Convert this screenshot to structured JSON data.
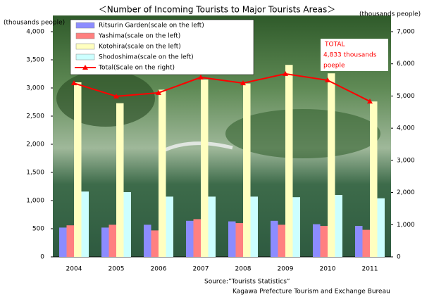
{
  "chart_data": {
    "type": "bar-line",
    "title": "＜Number of Incoming Tourists to Major Tourists Areas＞",
    "y_label": "(thousands people)",
    "y2_label": "(thousands people)",
    "categories": [
      "2004",
      "2005",
      "2006",
      "2007",
      "2008",
      "2009",
      "2010",
      "2011"
    ],
    "series": [
      {
        "name": "Ritsurin Garden(scale on the left)",
        "type": "bar",
        "color": "#8c8cff",
        "values": [
          520,
          520,
          570,
          640,
          630,
          640,
          580,
          550
        ]
      },
      {
        "name": "Yashima(scale on the left)",
        "type": "bar",
        "color": "#ff8080",
        "values": [
          560,
          570,
          470,
          670,
          600,
          570,
          550,
          480
        ]
      },
      {
        "name": "Kotohira(scale on the left)",
        "type": "bar",
        "color": "#ffffc0",
        "values": [
          3100,
          2730,
          2970,
          3150,
          3080,
          3410,
          3260,
          2760
        ]
      },
      {
        "name": "Shodoshima(scale on the left)",
        "type": "bar",
        "color": "#ccffff",
        "values": [
          1160,
          1150,
          1070,
          1070,
          1070,
          1060,
          1100,
          1040
        ]
      },
      {
        "name": "Total(Scale on the right)",
        "type": "line",
        "axis": "y2",
        "color": "#ff0000",
        "values": [
          5400,
          4990,
          5100,
          5580,
          5400,
          5690,
          5490,
          4833
        ]
      }
    ],
    "ylim": [
      0,
      4000
    ],
    "yticks": [
      0,
      500,
      {
        "value": 1000,
        "label": "1,000"
      },
      {
        "value": 1500,
        "label": "1,500"
      },
      {
        "value": 2000,
        "label": "2,000"
      },
      {
        "value": 2500,
        "label": "2,500"
      },
      {
        "value": 3000,
        "label": "3,000"
      },
      {
        "value": 3500,
        "label": "3,500"
      },
      {
        "value": 4000,
        "label": "4,000"
      }
    ],
    "y2lim": [
      0,
      7000
    ],
    "y2ticks": [
      0,
      {
        "value": 1000,
        "label": "1,000"
      },
      {
        "value": 2000,
        "label": "2,000"
      },
      {
        "value": 3000,
        "label": "3,000"
      },
      {
        "value": 4000,
        "label": "4,000"
      },
      {
        "value": 5000,
        "label": "5,000"
      },
      {
        "value": 6000,
        "label": "6,000"
      },
      {
        "value": 7000,
        "label": "7,000"
      }
    ],
    "annotation": [
      "TOTAL",
      "4,833 thousands",
      "poeple"
    ],
    "source": [
      "Source:”Tourists Statistics”",
      "Kagawa Prefecture Tourism and Exchange Bureau"
    ],
    "legend": "top-left"
  }
}
